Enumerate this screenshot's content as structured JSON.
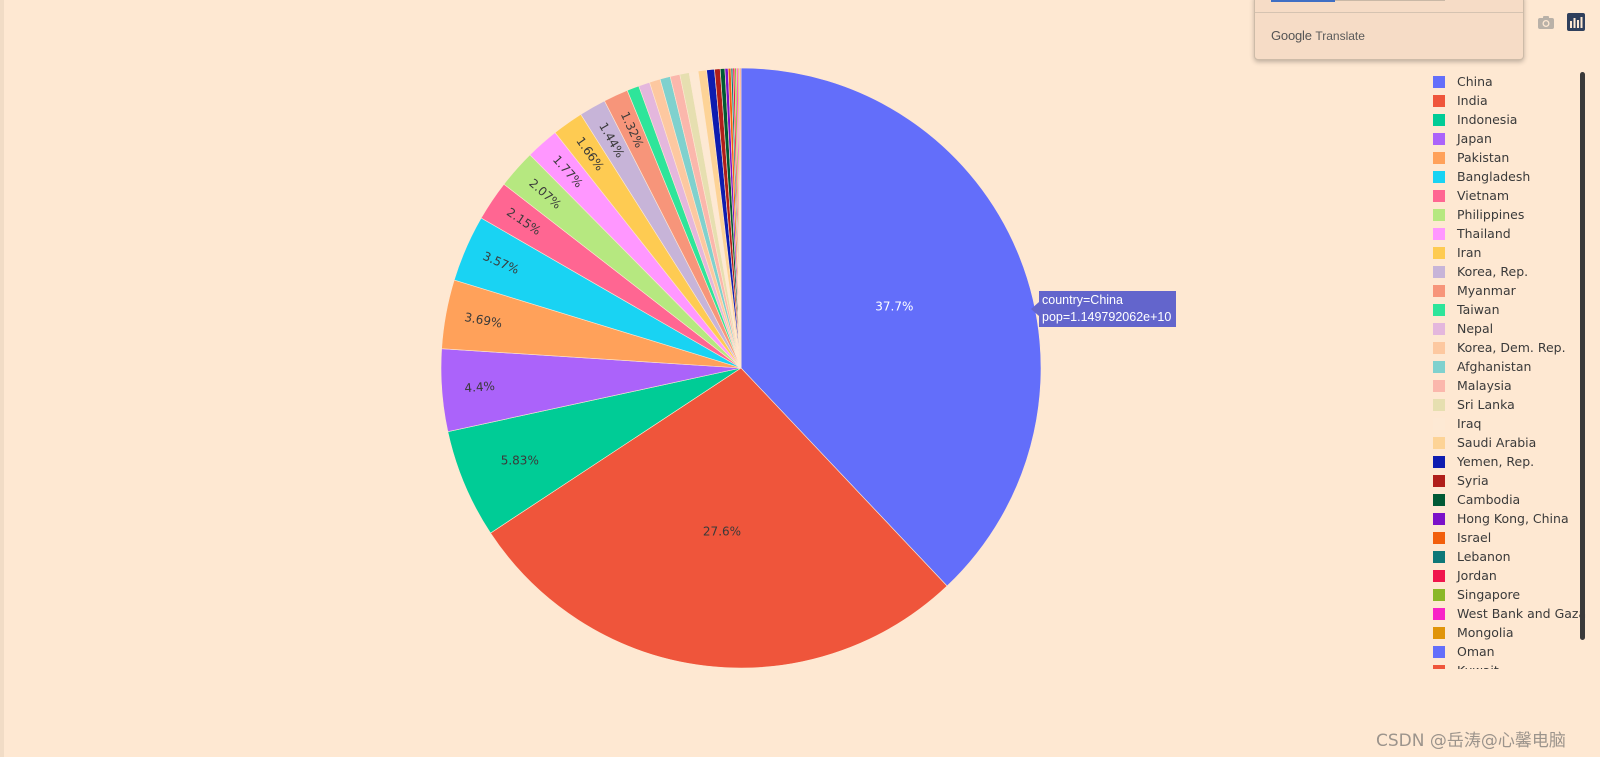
{
  "chart_data": {
    "type": "pie",
    "direction": "clockwise",
    "start": "12 o'clock",
    "series": [
      {
        "name": "China",
        "value": 37.7,
        "color": "#636efa",
        "label": "37.7%"
      },
      {
        "name": "India",
        "value": 27.6,
        "color": "#ef553b",
        "label": "27.6%"
      },
      {
        "name": "Indonesia",
        "value": 5.83,
        "color": "#00cc96",
        "label": "5.83%"
      },
      {
        "name": "Japan",
        "value": 4.4,
        "color": "#ab63fa",
        "label": "4.4%"
      },
      {
        "name": "Pakistan",
        "value": 3.69,
        "color": "#ffa15a",
        "label": "3.69%"
      },
      {
        "name": "Bangladesh",
        "value": 3.57,
        "color": "#19d3f3",
        "label": "3.57%"
      },
      {
        "name": "Vietnam",
        "value": 2.15,
        "color": "#ff6692",
        "label": "2.15%"
      },
      {
        "name": "Philippines",
        "value": 2.07,
        "color": "#b6e880",
        "label": "2.07%"
      },
      {
        "name": "Thailand",
        "value": 1.77,
        "color": "#ff97ff",
        "label": "1.77%"
      },
      {
        "name": "Iran",
        "value": 1.66,
        "color": "#fecb52",
        "label": "1.66%"
      },
      {
        "name": "Korea, Rep.",
        "value": 1.44,
        "color": "#c7b4d8",
        "label": "1.44%"
      },
      {
        "name": "Myanmar",
        "value": 1.32,
        "color": "#f7957a",
        "label": "1.32%"
      },
      {
        "name": "Taiwan",
        "value": 0.65,
        "color": "#2ee59a",
        "label": ""
      },
      {
        "name": "Nepal",
        "value": 0.6,
        "color": "#e4b7dd",
        "label": ""
      },
      {
        "name": "Korea, Dem. Rep.",
        "value": 0.58,
        "color": "#fdc8a0",
        "label": ""
      },
      {
        "name": "Afghanistan",
        "value": 0.55,
        "color": "#7fd1ce",
        "label": ""
      },
      {
        "name": "Malaysia",
        "value": 0.52,
        "color": "#fbb7ac",
        "label": ""
      },
      {
        "name": "Sri Lanka",
        "value": 0.5,
        "color": "#e6dfb0",
        "label": ""
      },
      {
        "name": "Iraq",
        "value": 0.48,
        "color": "#fde9d4",
        "label": ""
      },
      {
        "name": "Saudi Arabia",
        "value": 0.45,
        "color": "#fdd396",
        "label": ""
      },
      {
        "name": "Yemen, Rep.",
        "value": 0.42,
        "color": "#0e1cb0",
        "label": ""
      },
      {
        "name": "Syria",
        "value": 0.3,
        "color": "#b01e1a",
        "label": ""
      },
      {
        "name": "Cambodia",
        "value": 0.25,
        "color": "#005a35",
        "label": ""
      },
      {
        "name": "Hong Kong, China",
        "value": 0.17,
        "color": "#7b11c9",
        "label": ""
      },
      {
        "name": "Israel",
        "value": 0.15,
        "color": "#f25f0c",
        "label": ""
      },
      {
        "name": "Lebanon",
        "value": 0.1,
        "color": "#0e7878",
        "label": ""
      },
      {
        "name": "Jordan",
        "value": 0.1,
        "color": "#f0154c",
        "label": ""
      },
      {
        "name": "Singapore",
        "value": 0.09,
        "color": "#8ab828",
        "label": ""
      },
      {
        "name": "West Bank and Gaza",
        "value": 0.08,
        "color": "#f824c7",
        "label": ""
      },
      {
        "name": "Mongolia",
        "value": 0.06,
        "color": "#e0940a",
        "label": ""
      },
      {
        "name": "Oman",
        "value": 0.05,
        "color": "#636efa",
        "label": ""
      },
      {
        "name": "Kuwait",
        "value": 0.05,
        "color": "#ef553b",
        "label": ""
      }
    ],
    "legend_visible_count": 31,
    "legend_placement": "right"
  },
  "tooltip": {
    "line1": "country=China",
    "line2": "pop=1.149792062e+10"
  },
  "translate_popup": {
    "brand_google": "Google",
    "brand_translate": "Translate"
  },
  "modebar": {
    "camera_icon": "camera-icon",
    "plotly_icon": "plotly-logo-icon"
  },
  "watermark": "CSDN @岳涛@心馨电脑",
  "colors": {
    "background": "#fee8d2",
    "tooltip_bg": "#636efa"
  }
}
